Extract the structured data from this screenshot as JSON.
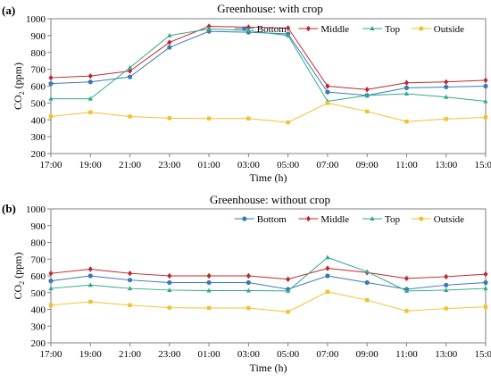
{
  "chart_data": [
    {
      "type": "line",
      "panel_label": "(a)",
      "title": "Greenhouse:  with crop",
      "xlabel": "Time (h)",
      "ylabel_main": "CO",
      "ylabel_sub": "2",
      "ylabel_unit": " (ppm)",
      "ylim": [
        200,
        1000
      ],
      "yticks": [
        200,
        300,
        400,
        500,
        600,
        700,
        800,
        900,
        1000
      ],
      "legend_position": "top-right",
      "grid": false,
      "categories": [
        "17:00",
        "19:00",
        "21:00",
        "23:00",
        "01:00",
        "03:00",
        "05:00",
        "07:00",
        "09:00",
        "11:00",
        "13:00",
        "15:00"
      ],
      "series": [
        {
          "name": "Bottom",
          "color": "#3a7ab6",
          "marker": "circle",
          "values": [
            615,
            625,
            655,
            830,
            925,
            920,
            910,
            565,
            545,
            590,
            595,
            600
          ]
        },
        {
          "name": "Middle",
          "color": "#c0282d",
          "marker": "diamond",
          "values": [
            650,
            660,
            690,
            860,
            955,
            950,
            945,
            600,
            580,
            620,
            625,
            635
          ]
        },
        {
          "name": "Top",
          "color": "#2faa8a",
          "marker": "triangle",
          "values": [
            525,
            525,
            710,
            900,
            940,
            930,
            900,
            510,
            545,
            555,
            535,
            510
          ]
        },
        {
          "name": "Outside",
          "color": "#f2c12e",
          "marker": "square",
          "values": [
            420,
            445,
            420,
            410,
            408,
            408,
            385,
            500,
            450,
            390,
            405,
            415
          ]
        }
      ]
    },
    {
      "type": "line",
      "panel_label": "(b)",
      "title": "Greenhouse:  without crop",
      "xlabel": "Time (h)",
      "ylabel_main": "CO",
      "ylabel_sub": "2",
      "ylabel_unit": " (ppm)",
      "ylim": [
        200,
        1000
      ],
      "yticks": [
        200,
        300,
        400,
        500,
        600,
        700,
        800,
        900,
        1000
      ],
      "legend_position": "top-right",
      "grid": false,
      "categories": [
        "17:00",
        "19:00",
        "21:00",
        "23:00",
        "01:00",
        "03:00",
        "05:00",
        "07:00",
        "09:00",
        "11:00",
        "13:00",
        "15:00"
      ],
      "series": [
        {
          "name": "Bottom",
          "color": "#3a7ab6",
          "marker": "circle",
          "values": [
            570,
            600,
            575,
            560,
            560,
            560,
            520,
            600,
            560,
            520,
            545,
            560
          ]
        },
        {
          "name": "Middle",
          "color": "#c0282d",
          "marker": "diamond",
          "values": [
            615,
            640,
            615,
            600,
            600,
            600,
            580,
            645,
            620,
            585,
            595,
            610
          ]
        },
        {
          "name": "Top",
          "color": "#2faa8a",
          "marker": "triangle",
          "values": [
            525,
            545,
            525,
            515,
            512,
            512,
            510,
            710,
            625,
            510,
            515,
            525
          ]
        },
        {
          "name": "Outside",
          "color": "#f2c12e",
          "marker": "square",
          "values": [
            425,
            445,
            425,
            410,
            408,
            408,
            385,
            505,
            455,
            390,
            405,
            415
          ]
        }
      ]
    }
  ]
}
